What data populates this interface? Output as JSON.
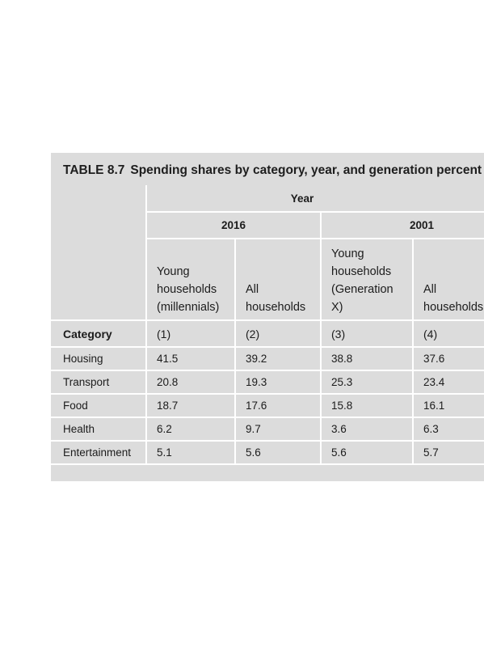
{
  "table": {
    "caption_number": "TABLE 8.7",
    "caption_text": "Spending shares by category, year, and generation percent",
    "header_year": "Year",
    "year_2016": "2016",
    "year_2001": "2001",
    "col_labels": [
      [
        "Young",
        "households",
        "(millennials)"
      ],
      [
        "All",
        "households"
      ],
      [
        "Young",
        "households",
        "(Generation",
        "X)"
      ],
      [
        "All",
        "households"
      ]
    ],
    "category_label": "Category",
    "col_indices": [
      "(1)",
      "(2)",
      "(3)",
      "(4)"
    ],
    "rows": [
      {
        "category": "Housing",
        "values": [
          "41.5",
          "39.2",
          "38.8",
          "37.6"
        ]
      },
      {
        "category": "Transport",
        "values": [
          "20.8",
          "19.3",
          "25.3",
          "23.4"
        ]
      },
      {
        "category": "Food",
        "values": [
          "18.7",
          "17.6",
          "15.8",
          "16.1"
        ]
      },
      {
        "category": "Health",
        "values": [
          "6.2",
          "9.7",
          "3.6",
          "6.3"
        ]
      },
      {
        "category": "Entertainment",
        "values": [
          "5.1",
          "5.6",
          "5.6",
          "5.7"
        ]
      }
    ]
  }
}
